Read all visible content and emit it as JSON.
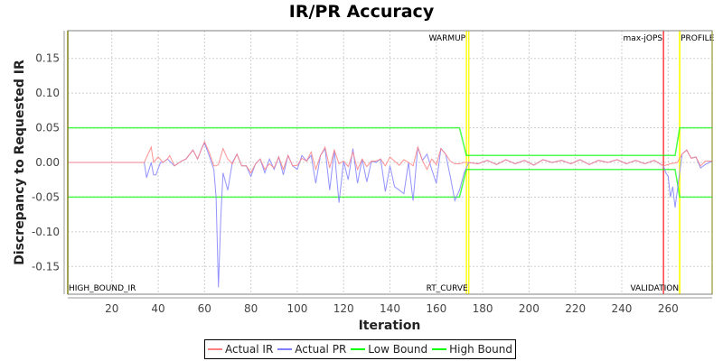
{
  "chart_data": {
    "type": "line",
    "title": "IR/PR Accuracy",
    "xlabel": "Iteration",
    "ylabel": "Discrepancy to Requested IR",
    "xlim": [
      1,
      279
    ],
    "ylim": [
      -0.19,
      0.19
    ],
    "x_ticks": [
      20,
      40,
      60,
      80,
      100,
      120,
      140,
      160,
      180,
      200,
      220,
      240,
      260
    ],
    "y_ticks": [
      -0.15,
      -0.1,
      -0.05,
      0.0,
      0.05,
      0.1,
      0.15
    ],
    "y_tick_labels": [
      "-0.15",
      "-0.10",
      "-0.05",
      "0.00",
      "0.05",
      "0.10",
      "0.15"
    ],
    "grid": true,
    "legend_position": "bottom",
    "series": [
      {
        "name": "Actual IR",
        "color": "#ff8080",
        "x": [
          1,
          34,
          36,
          37,
          38,
          40,
          42,
          44,
          45,
          47,
          50,
          52,
          55,
          57,
          59,
          60,
          62,
          64,
          65,
          66,
          68,
          70,
          72,
          74,
          76,
          78,
          80,
          82,
          84,
          86,
          88,
          90,
          92,
          94,
          96,
          98,
          100,
          102,
          104,
          106,
          108,
          110,
          112,
          114,
          116,
          118,
          120,
          122,
          124,
          126,
          128,
          130,
          132,
          134,
          136,
          138,
          140,
          142,
          144,
          146,
          148,
          150,
          152,
          154,
          156,
          158,
          160,
          162,
          164,
          166,
          168,
          170,
          172,
          174,
          178,
          182,
          186,
          190,
          194,
          198,
          202,
          206,
          210,
          214,
          218,
          222,
          226,
          230,
          234,
          238,
          242,
          246,
          250,
          254,
          258,
          261,
          264,
          266,
          268,
          270,
          272,
          274,
          276,
          279
        ],
        "y": [
          0,
          0,
          0.015,
          0.022,
          0,
          0.008,
          0,
          0.005,
          0.01,
          -0.005,
          0.002,
          0.005,
          0.018,
          0.005,
          0.022,
          0.03,
          0.015,
          -0.005,
          -0.005,
          -0.003,
          0.02,
          0.005,
          -0.002,
          0.012,
          -0.005,
          -0.005,
          -0.015,
          -0.002,
          0.005,
          -0.01,
          -0.002,
          -0.008,
          0.008,
          -0.01,
          0.01,
          -0.005,
          -0.004,
          0.006,
          0.002,
          0.015,
          -0.01,
          0.01,
          0.022,
          -0.008,
          0.018,
          -0.002,
          0.002,
          -0.006,
          0.015,
          -0.01,
          0.005,
          -0.006,
          0.002,
          0.002,
          0.005,
          -0.005,
          0.008,
          0.002,
          -0.004,
          0.004,
          0.0,
          -0.005,
          0.022,
          0.003,
          -0.01,
          0.005,
          -0.003,
          0.02,
          0.012,
          0.002,
          -0.002,
          -0.002,
          0.0,
          0.0,
          -0.002,
          0.003,
          -0.003,
          0.004,
          -0.002,
          0.003,
          -0.004,
          0.004,
          0.0,
          0.003,
          -0.002,
          0.004,
          -0.003,
          0.003,
          0.0,
          0.004,
          -0.002,
          0.003,
          -0.002,
          0.003,
          -0.005,
          -0.002,
          0.0,
          0.012,
          0.018,
          0.006,
          0.008,
          -0.005,
          0.002,
          0.002
        ]
      },
      {
        "name": "Actual PR",
        "color": "#8080ff",
        "x": [
          1,
          34,
          35,
          37,
          38,
          39,
          41,
          42,
          44,
          47,
          50,
          52,
          55,
          57,
          59,
          60,
          62,
          64,
          65,
          66,
          67,
          68,
          70,
          72,
          74,
          76,
          78,
          80,
          82,
          84,
          86,
          88,
          90,
          92,
          94,
          96,
          98,
          100,
          102,
          104,
          106,
          108,
          110,
          112,
          114,
          116,
          118,
          120,
          122,
          124,
          126,
          128,
          130,
          132,
          134,
          136,
          138,
          140,
          142,
          144,
          146,
          148,
          150,
          152,
          154,
          156,
          158,
          160,
          162,
          164,
          166,
          168,
          170,
          172,
          174,
          178,
          182,
          186,
          190,
          194,
          198,
          202,
          206,
          210,
          214,
          218,
          222,
          226,
          230,
          234,
          238,
          242,
          246,
          250,
          254,
          258,
          259,
          260,
          261,
          262,
          263,
          264,
          266,
          268,
          270,
          272,
          274,
          276,
          279
        ],
        "y": [
          0,
          0,
          -0.022,
          0,
          -0.018,
          -0.018,
          0,
          0,
          0.005,
          -0.005,
          0.002,
          0.005,
          0.018,
          0.005,
          0.022,
          0.028,
          0.01,
          -0.01,
          -0.05,
          -0.18,
          -0.08,
          -0.015,
          -0.04,
          0.0,
          0.012,
          -0.005,
          -0.005,
          -0.02,
          -0.002,
          0.005,
          -0.015,
          0.005,
          -0.01,
          0.008,
          -0.018,
          0.01,
          -0.005,
          -0.01,
          0.01,
          0.002,
          0.01,
          -0.03,
          0.01,
          0.02,
          -0.04,
          0.018,
          -0.058,
          0.002,
          -0.025,
          0.02,
          -0.03,
          0.005,
          -0.028,
          0.002,
          0.0,
          0.005,
          -0.042,
          -0.005,
          -0.035,
          -0.04,
          -0.045,
          0.0,
          -0.055,
          0.022,
          0.003,
          0.012,
          -0.01,
          -0.03,
          0.02,
          0.012,
          -0.02,
          -0.055,
          -0.04,
          -0.015,
          0.0,
          -0.002,
          0.003,
          -0.003,
          0.004,
          -0.002,
          0.003,
          -0.004,
          0.004,
          0.0,
          0.003,
          -0.002,
          0.004,
          -0.003,
          0.003,
          0.0,
          0.004,
          -0.002,
          0.003,
          -0.002,
          0.003,
          -0.005,
          -0.015,
          -0.02,
          -0.05,
          -0.035,
          -0.065,
          -0.04,
          0.012,
          0.018,
          0.006,
          0.008,
          -0.008,
          -0.003,
          0.002
        ]
      },
      {
        "name": "Low Bound",
        "color": "#00ff00",
        "x": [
          1,
          170,
          173,
          263,
          265,
          279
        ],
        "y": [
          -0.05,
          -0.05,
          -0.01,
          -0.01,
          -0.05,
          -0.05
        ]
      },
      {
        "name": "High Bound",
        "color": "#00ff00",
        "x": [
          1,
          170,
          173,
          263,
          265,
          279
        ],
        "y": [
          0.05,
          0.05,
          0.01,
          0.01,
          0.05,
          0.05
        ]
      }
    ],
    "markers": [
      {
        "label": "HIGH_BOUND_IR",
        "x": 1,
        "color": "#ffff00",
        "label_position": "bottom-right"
      },
      {
        "label": "WARMUP",
        "x": 173,
        "color": "#ffff00",
        "label_position": "top-left"
      },
      {
        "label": "RT_CURVE",
        "x": 174,
        "color": "#ffff00",
        "label_position": "bottom-left"
      },
      {
        "label": "max-jOPS",
        "x": 258,
        "color": "#ff0000",
        "label_position": "top-left"
      },
      {
        "label": "VALIDATION",
        "x": 265,
        "color": "#ffff00",
        "label_position": "bottom-left"
      },
      {
        "label": "PROFILE",
        "x": 265,
        "color": "#ffff00",
        "label_position": "top-right"
      },
      {
        "label": "",
        "x": 279,
        "color": "#ffff00",
        "label_position": "none"
      }
    ]
  },
  "legend": {
    "items": [
      {
        "label": "Actual IR",
        "color": "#ff8080"
      },
      {
        "label": "Actual PR",
        "color": "#8080ff"
      },
      {
        "label": "Low Bound",
        "color": "#00ff00"
      },
      {
        "label": "High Bound",
        "color": "#00ff00"
      }
    ]
  }
}
